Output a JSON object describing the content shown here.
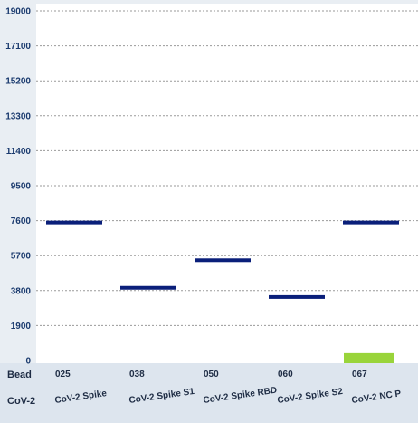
{
  "chart_data": {
    "type": "bar",
    "y_ticks": [
      "19000",
      "17100",
      "15200",
      "13300",
      "11400",
      "9500",
      "7600",
      "5700",
      "3800",
      "1900",
      "0"
    ],
    "ylim": [
      0,
      19000
    ],
    "grid": "horizontal dashed",
    "bead_row_label": "Bead",
    "antigen_row_label": "CoV-2",
    "categories": [
      {
        "bead": "025",
        "antigen": "CoV-2 Spike",
        "value": 7500,
        "color": "#0a1f7a",
        "kind": "marker"
      },
      {
        "bead": "038",
        "antigen": "CoV-2 Spike S1",
        "value": 3950,
        "color": "#0a1f7a",
        "kind": "marker"
      },
      {
        "bead": "050",
        "antigen": "CoV-2 Spike RBD",
        "value": 5450,
        "color": "#0a1f7a",
        "kind": "marker"
      },
      {
        "bead": "060",
        "antigen": "CoV-2 Spike S2",
        "value": 3450,
        "color": "#0a1f7a",
        "kind": "marker"
      },
      {
        "bead": "067",
        "antigen": "CoV-2 NC P",
        "value": 7500,
        "color": "#0a1f7a",
        "kind": "marker",
        "bar_value": 400,
        "bar_color": "#99d43a"
      }
    ]
  }
}
